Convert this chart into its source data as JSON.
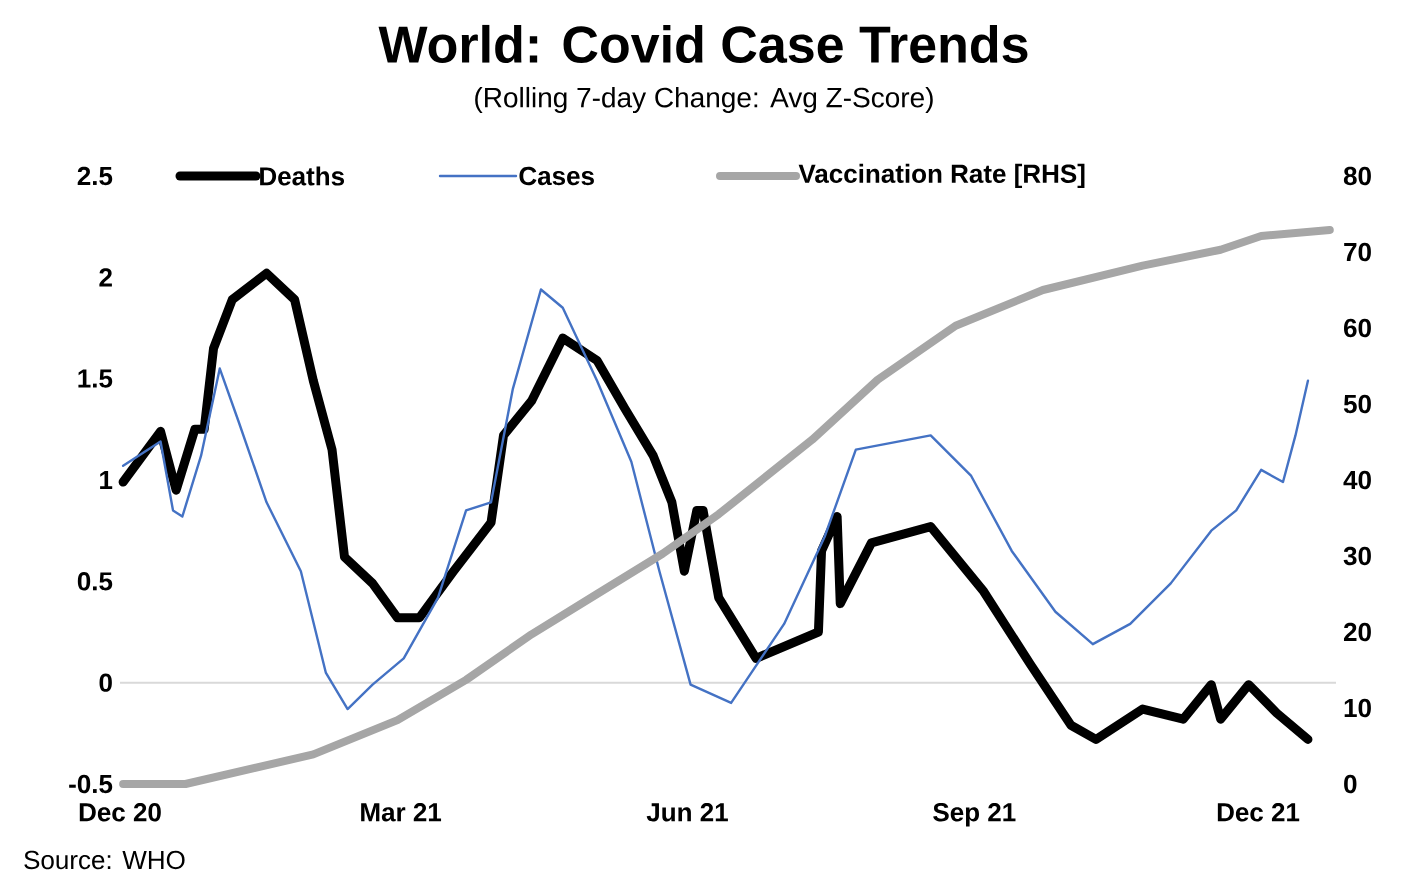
{
  "chart_data": {
    "type": "line",
    "title": "World: Covid Case Trends",
    "subtitle": "(Rolling 7-day Change: Avg Z-Score)",
    "annotations": [
      "Source: WHO"
    ],
    "xlim": [
      "2020-12-01",
      "2021-12-26"
    ],
    "xticks": [
      {
        "value": "2020-12-01",
        "label": "Dec 20"
      },
      {
        "value": "2021-03-01",
        "label": "Mar 21"
      },
      {
        "value": "2021-06-01",
        "label": "Jun 21"
      },
      {
        "value": "2021-09-01",
        "label": "Sep 21"
      },
      {
        "value": "2021-12-01",
        "label": "Dec 21"
      }
    ],
    "ylim": [
      -0.5,
      2.5
    ],
    "yticks": [
      -0.5,
      0,
      0.5,
      1,
      1.5,
      2,
      2.5
    ],
    "y2lim": [
      0,
      80
    ],
    "y2ticks": [
      0,
      10,
      20,
      30,
      40,
      50,
      60,
      70,
      80
    ],
    "legend": "top",
    "marker": "none",
    "line_style": "solid",
    "grid": false,
    "ref_lines": [
      {
        "axis": "y",
        "value": 0,
        "color": "#d9d9d9"
      }
    ],
    "series": [
      {
        "name": "Deaths",
        "color": "#000000",
        "x": [
          "2020-12-02",
          "2020-12-14",
          "2020-12-19",
          "2020-12-25",
          "2020-12-28",
          "2020-12-31",
          "2021-01-06",
          "2021-01-17",
          "2021-01-26",
          "2021-02-01",
          "2021-02-07",
          "2021-02-11",
          "2021-02-20",
          "2021-02-28",
          "2021-03-07",
          "2021-03-18",
          "2021-03-30",
          "2021-04-03",
          "2021-04-12",
          "2021-04-22",
          "2021-05-03",
          "2021-05-12",
          "2021-05-21",
          "2021-05-27",
          "2021-05-31",
          "2021-06-04",
          "2021-06-06",
          "2021-06-11",
          "2021-06-23",
          "2021-07-13",
          "2021-07-14",
          "2021-07-19",
          "2021-07-20",
          "2021-07-30",
          "2021-08-18",
          "2021-09-04",
          "2021-09-19",
          "2021-10-02",
          "2021-10-10",
          "2021-10-25",
          "2021-11-07",
          "2021-11-16",
          "2021-11-19",
          "2021-11-28",
          "2021-12-07",
          "2021-12-17"
        ],
        "values": [
          0.99,
          1.24,
          0.95,
          1.25,
          1.25,
          1.65,
          1.89,
          2.02,
          1.89,
          1.49,
          1.15,
          0.62,
          0.49,
          0.32,
          0.32,
          0.55,
          0.79,
          1.22,
          1.39,
          1.7,
          1.59,
          1.35,
          1.12,
          0.89,
          0.55,
          0.85,
          0.85,
          0.42,
          0.12,
          0.25,
          0.65,
          0.82,
          0.39,
          0.69,
          0.77,
          0.45,
          0.09,
          -0.21,
          -0.28,
          -0.13,
          -0.18,
          -0.01,
          -0.18,
          -0.01,
          -0.15,
          -0.28
        ]
      },
      {
        "name": "Cases",
        "color": "#4472c4",
        "x": [
          "2020-12-02",
          "2020-12-14",
          "2020-12-18",
          "2020-12-21",
          "2020-12-27",
          "2021-01-02",
          "2021-01-08",
          "2021-01-17",
          "2021-01-28",
          "2021-02-05",
          "2021-02-12",
          "2021-02-20",
          "2021-03-02",
          "2021-03-13",
          "2021-03-22",
          "2021-03-30",
          "2021-04-06",
          "2021-04-15",
          "2021-04-22",
          "2021-05-03",
          "2021-05-14",
          "2021-05-23",
          "2021-06-02",
          "2021-06-15",
          "2021-07-02",
          "2021-07-15",
          "2021-07-25",
          "2021-08-18",
          "2021-08-31",
          "2021-09-13",
          "2021-09-27",
          "2021-10-09",
          "2021-10-21",
          "2021-11-03",
          "2021-11-16",
          "2021-11-24",
          "2021-12-02",
          "2021-12-09",
          "2021-12-13",
          "2021-12-17"
        ],
        "values": [
          1.07,
          1.19,
          0.85,
          0.82,
          1.12,
          1.55,
          1.29,
          0.89,
          0.55,
          0.05,
          -0.13,
          -0.01,
          0.12,
          0.42,
          0.85,
          0.89,
          1.45,
          1.94,
          1.85,
          1.49,
          1.09,
          0.55,
          -0.01,
          -0.1,
          0.29,
          0.72,
          1.15,
          1.22,
          1.02,
          0.65,
          0.35,
          0.19,
          0.29,
          0.49,
          0.75,
          0.85,
          1.05,
          0.99,
          1.22,
          1.49
        ]
      },
      {
        "name": "Vaccination Rate [RHS]",
        "color": "#a6a6a6",
        "axis": "y2",
        "x": [
          "2020-12-02",
          "2020-12-22",
          "2021-02-01",
          "2021-02-28",
          "2021-03-22",
          "2021-04-12",
          "2021-05-03",
          "2021-05-24",
          "2021-06-11",
          "2021-07-11",
          "2021-08-01",
          "2021-08-26",
          "2021-09-23",
          "2021-10-25",
          "2021-11-19",
          "2021-12-02",
          "2021-12-24"
        ],
        "values": [
          0,
          0,
          3.9,
          8.4,
          13.7,
          19.7,
          25,
          30.3,
          35.5,
          45.3,
          53.2,
          60.3,
          65,
          68.2,
          70.3,
          72.1,
          72.9
        ]
      }
    ]
  }
}
